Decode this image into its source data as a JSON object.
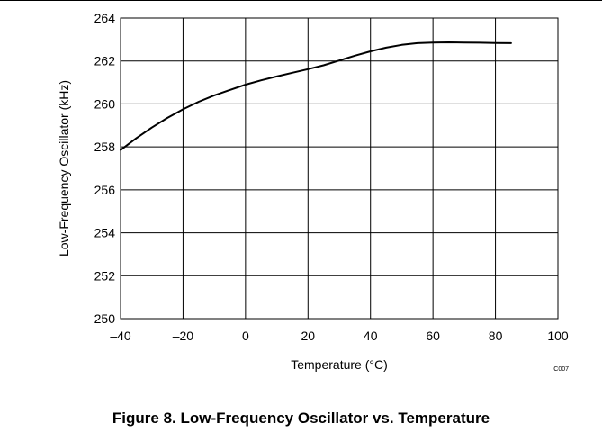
{
  "chart_data": {
    "type": "line",
    "xlabel": "Temperature (°C)",
    "ylabel": "Low-Frequency Oscillator (kHz)",
    "xlim": [
      -40,
      100
    ],
    "ylim": [
      250,
      264
    ],
    "xticks": [
      -40,
      -20,
      0,
      20,
      40,
      60,
      80,
      100
    ],
    "yticks": [
      250,
      252,
      254,
      256,
      258,
      260,
      262,
      264
    ],
    "xtick_labels": [
      "–40",
      "–20",
      "0",
      "20",
      "40",
      "60",
      "80",
      "100"
    ],
    "ytick_labels": [
      "250",
      "252",
      "254",
      "256",
      "258",
      "260",
      "262",
      "264"
    ],
    "grid": true,
    "series": [
      {
        "x": [
          -40,
          -35,
          -30,
          -25,
          -20,
          -15,
          -10,
          -5,
          0,
          5,
          10,
          15,
          20,
          25,
          30,
          35,
          40,
          45,
          50,
          55,
          60,
          65,
          70,
          75,
          80,
          85
        ],
        "y": [
          257.85,
          258.4,
          258.9,
          259.35,
          259.75,
          260.1,
          260.4,
          260.65,
          260.9,
          261.1,
          261.28,
          261.45,
          261.62,
          261.8,
          262.02,
          262.25,
          262.45,
          262.62,
          262.75,
          262.83,
          262.86,
          262.87,
          262.86,
          262.85,
          262.84,
          262.83
        ]
      }
    ],
    "code": "C007"
  },
  "caption": "Figure 8. Low-Frequency Oscillator vs. Temperature"
}
